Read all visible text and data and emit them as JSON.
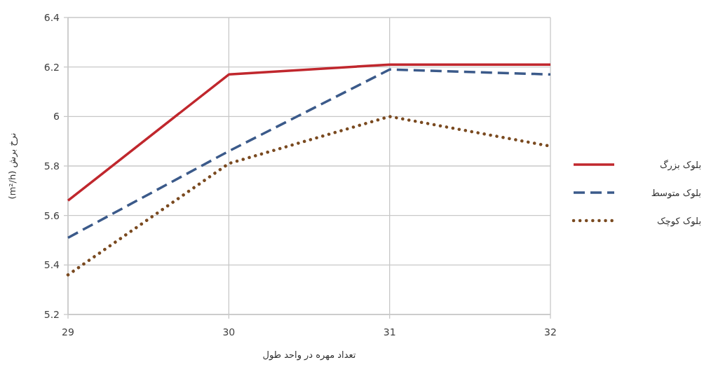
{
  "chart_data": {
    "type": "line",
    "xlabel": "تعداد مهره در واحد طول",
    "ylabel": "نرخ برش (m²/h)",
    "x": [
      29,
      30,
      31,
      32
    ],
    "series": [
      {
        "name": "بلوک بزرگ",
        "color": "#c0272d",
        "line_style": "solid",
        "values": [
          5.66,
          6.17,
          6.21,
          6.21
        ]
      },
      {
        "name": "بلوک متوسط",
        "color": "#3b5a8a",
        "line_style": "dashed",
        "values": [
          5.51,
          5.86,
          6.19,
          6.17
        ]
      },
      {
        "name": "بلوک کوچک",
        "color": "#7a4a20",
        "line_style": "dotted",
        "values": [
          5.36,
          5.81,
          6.0,
          5.88
        ]
      }
    ],
    "xlim": [
      29,
      32
    ],
    "xticks": [
      29,
      30,
      31,
      32
    ],
    "ylim": [
      5.2,
      6.4
    ],
    "yticks": [
      5.2,
      5.4,
      5.6,
      5.8,
      6,
      6.2,
      6.4
    ],
    "grid": true,
    "legend": "right",
    "marker": "none"
  }
}
